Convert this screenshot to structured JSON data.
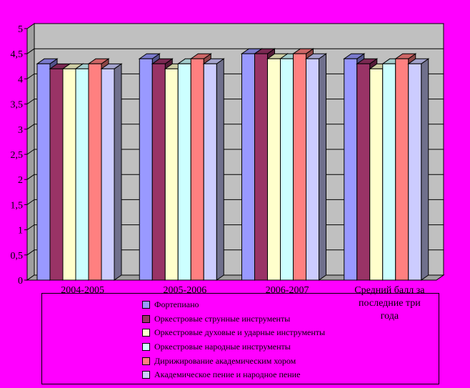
{
  "chart_data": {
    "type": "bar",
    "categories": [
      "2004-2005",
      "2005-2006",
      "2006-2007",
      "Средний балл за последние три года"
    ],
    "ylim": [
      0,
      5
    ],
    "y_ticks": [
      "0",
      "0,5",
      "1",
      "1,5",
      "2",
      "2,5",
      "3",
      "3,5",
      "4",
      "4,5",
      "5"
    ],
    "grid": true,
    "legend_position": "bottom",
    "series": [
      {
        "name": "Фортепиано",
        "color": "#9999ff",
        "values": [
          4.3,
          4.4,
          4.5,
          4.4
        ]
      },
      {
        "name": "Оркестровые струнные инструменты",
        "color": "#993366",
        "values": [
          4.2,
          4.3,
          4.5,
          4.3
        ]
      },
      {
        "name": "Оркестровые духовые и ударные инструменты",
        "color": "#ffffcc",
        "values": [
          4.2,
          4.2,
          4.4,
          4.2
        ]
      },
      {
        "name": "Оркестровые народные инструменты",
        "color": "#ccffff",
        "values": [
          4.2,
          4.3,
          4.4,
          4.3
        ]
      },
      {
        "name": "Дирижирование академическим хором",
        "color": "#ff8080",
        "values": [
          4.3,
          4.4,
          4.5,
          4.4
        ]
      },
      {
        "name": "Академическое пение и народное пение",
        "color": "#ccccff",
        "values": [
          4.2,
          4.3,
          4.4,
          4.3
        ]
      }
    ]
  }
}
